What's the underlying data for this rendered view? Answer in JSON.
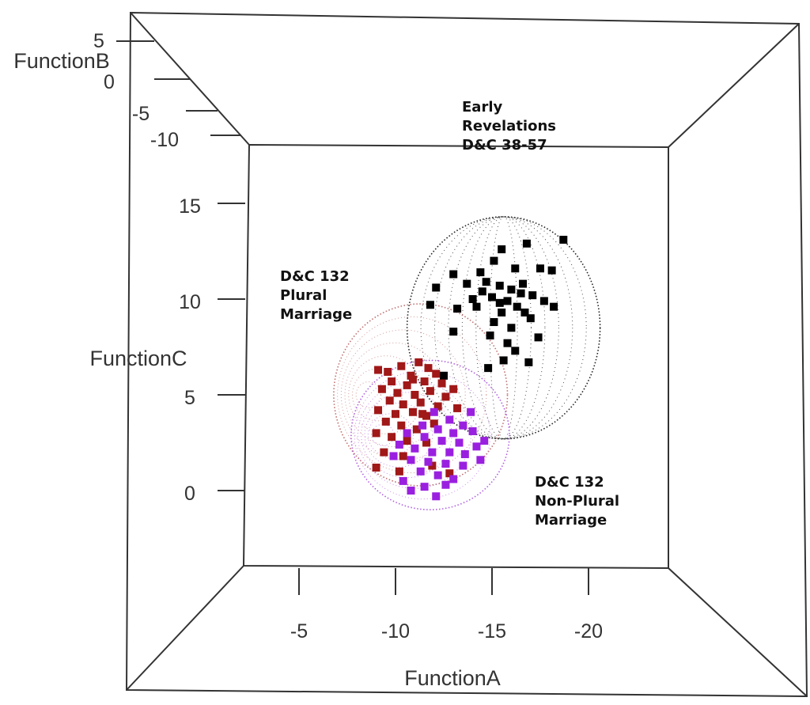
{
  "chart_data": {
    "type": "scatter",
    "subtype": "3d-scatter-with-ellipsoids",
    "xlabel": "FunctionA",
    "ylabel": "FunctionC",
    "zlabel": "FunctionB",
    "x_ticks": [
      "-5",
      "-10",
      "-15",
      "-20"
    ],
    "x_tick_values": [
      -5,
      -10,
      -15,
      -20
    ],
    "y_ticks": [
      "15",
      "10",
      "5",
      "0"
    ],
    "y_tick_values": [
      15,
      10,
      5,
      0
    ],
    "z_ticks": [
      "5",
      "0",
      "-5",
      "-10"
    ],
    "xlim": [
      -2,
      -26
    ],
    "ylim": [
      -4,
      18
    ],
    "grid": false,
    "annotations": {
      "early": [
        "Early",
        "Revelations",
        "D&C 38-57"
      ],
      "plural": [
        "D&C 132",
        "Plural",
        "Marriage"
      ],
      "nonplural": [
        "D&C 132",
        "Non-Plural",
        "Marriage"
      ]
    },
    "series": [
      {
        "name": "Early Revelations D&C 38-57",
        "color": "#000000",
        "ellipsoid": {
          "center": [
            -15.6,
            8.5
          ],
          "radius": [
            5.0,
            5.8
          ]
        },
        "points": [
          [
            -18.7,
            13.1
          ],
          [
            -16.8,
            12.9
          ],
          [
            -15.5,
            12.6
          ],
          [
            -15.1,
            12.0
          ],
          [
            -14.4,
            11.4
          ],
          [
            -16.2,
            11.6
          ],
          [
            -17.5,
            11.6
          ],
          [
            -18.1,
            11.5
          ],
          [
            -13.0,
            11.3
          ],
          [
            -12.1,
            10.6
          ],
          [
            -13.7,
            10.8
          ],
          [
            -14.7,
            10.9
          ],
          [
            -15.4,
            10.7
          ],
          [
            -16.0,
            10.5
          ],
          [
            -16.5,
            10.3
          ],
          [
            -17.1,
            10.2
          ],
          [
            -15.0,
            10.1
          ],
          [
            -14.5,
            10.4
          ],
          [
            -15.8,
            9.9
          ],
          [
            -16.3,
            9.6
          ],
          [
            -14.2,
            9.6
          ],
          [
            -17.7,
            9.9
          ],
          [
            -18.2,
            9.6
          ],
          [
            -11.8,
            9.7
          ],
          [
            -13.2,
            9.5
          ],
          [
            -15.5,
            9.3
          ],
          [
            -16.7,
            9.3
          ],
          [
            -15.1,
            8.8
          ],
          [
            -16.0,
            8.5
          ],
          [
            -14.9,
            8.1
          ],
          [
            -17.4,
            8.0
          ],
          [
            -13.0,
            8.3
          ],
          [
            -15.8,
            7.7
          ],
          [
            -16.2,
            7.3
          ],
          [
            -15.6,
            6.8
          ],
          [
            -14.8,
            6.4
          ],
          [
            -16.9,
            6.7
          ],
          [
            -12.5,
            6.0
          ],
          [
            -15.4,
            9.8
          ],
          [
            -16.6,
            10.8
          ],
          [
            -14.0,
            10.0
          ],
          [
            -17.0,
            9.0
          ]
        ]
      },
      {
        "name": "D&C 132 Plural Marriage",
        "color": "#a01818",
        "ellipsoid": {
          "center": [
            -11.3,
            5.0
          ],
          "radius": [
            4.5,
            4.75
          ]
        },
        "points": [
          [
            -9.1,
            6.3
          ],
          [
            -9.6,
            6.2
          ],
          [
            -10.3,
            6.5
          ],
          [
            -11.2,
            6.7
          ],
          [
            -11.7,
            6.4
          ],
          [
            -12.1,
            6.1
          ],
          [
            -10.8,
            6.0
          ],
          [
            -9.8,
            5.7
          ],
          [
            -10.6,
            5.5
          ],
          [
            -11.5,
            5.7
          ],
          [
            -12.4,
            5.6
          ],
          [
            -13.0,
            5.3
          ],
          [
            -9.3,
            5.3
          ],
          [
            -10.1,
            5.1
          ],
          [
            -11.0,
            5.0
          ],
          [
            -11.8,
            5.2
          ],
          [
            -12.6,
            4.9
          ],
          [
            -9.7,
            4.7
          ],
          [
            -10.4,
            4.5
          ],
          [
            -11.3,
            4.6
          ],
          [
            -12.2,
            4.4
          ],
          [
            -13.2,
            4.3
          ],
          [
            -9.1,
            4.2
          ],
          [
            -10.0,
            4.0
          ],
          [
            -10.9,
            4.1
          ],
          [
            -11.6,
            3.9
          ],
          [
            -9.5,
            3.6
          ],
          [
            -10.3,
            3.4
          ],
          [
            -11.1,
            3.2
          ],
          [
            -12.0,
            3.5
          ],
          [
            -9.0,
            3.0
          ],
          [
            -9.8,
            2.8
          ],
          [
            -10.6,
            2.6
          ],
          [
            -11.6,
            2.5
          ],
          [
            -9.4,
            2.0
          ],
          [
            -10.4,
            1.8
          ],
          [
            -11.9,
            1.3
          ],
          [
            -9.0,
            1.2
          ],
          [
            -10.2,
            1.0
          ],
          [
            -12.8,
            0.9
          ],
          [
            -10.9,
            5.8
          ],
          [
            -11.4,
            4.0
          ]
        ]
      },
      {
        "name": "D&C 132 Non-Plural Marriage",
        "color": "#9a20e0",
        "ellipsoid": {
          "center": [
            -11.8,
            2.9
          ],
          "radius": [
            4.1,
            3.9
          ]
        },
        "points": [
          [
            -12.0,
            4.1
          ],
          [
            -12.8,
            3.7
          ],
          [
            -13.5,
            3.4
          ],
          [
            -11.4,
            3.4
          ],
          [
            -12.2,
            3.2
          ],
          [
            -13.0,
            3.0
          ],
          [
            -14.0,
            3.1
          ],
          [
            -10.6,
            3.0
          ],
          [
            -11.5,
            2.8
          ],
          [
            -12.4,
            2.6
          ],
          [
            -13.3,
            2.5
          ],
          [
            -14.2,
            2.3
          ],
          [
            -10.2,
            2.4
          ],
          [
            -11.0,
            2.2
          ],
          [
            -11.9,
            2.0
          ],
          [
            -12.8,
            2.0
          ],
          [
            -13.6,
            1.9
          ],
          [
            -9.9,
            1.8
          ],
          [
            -10.8,
            1.6
          ],
          [
            -11.7,
            1.5
          ],
          [
            -12.6,
            1.4
          ],
          [
            -13.5,
            1.3
          ],
          [
            -14.4,
            1.6
          ],
          [
            -11.3,
            1.0
          ],
          [
            -12.2,
            0.8
          ],
          [
            -13.0,
            0.6
          ],
          [
            -10.4,
            0.5
          ],
          [
            -11.5,
            0.2
          ],
          [
            -12.6,
            0.3
          ],
          [
            -10.8,
            0.0
          ],
          [
            -12.1,
            -0.3
          ],
          [
            -14.6,
            2.6
          ],
          [
            -13.9,
            4.1
          ]
        ]
      }
    ]
  }
}
